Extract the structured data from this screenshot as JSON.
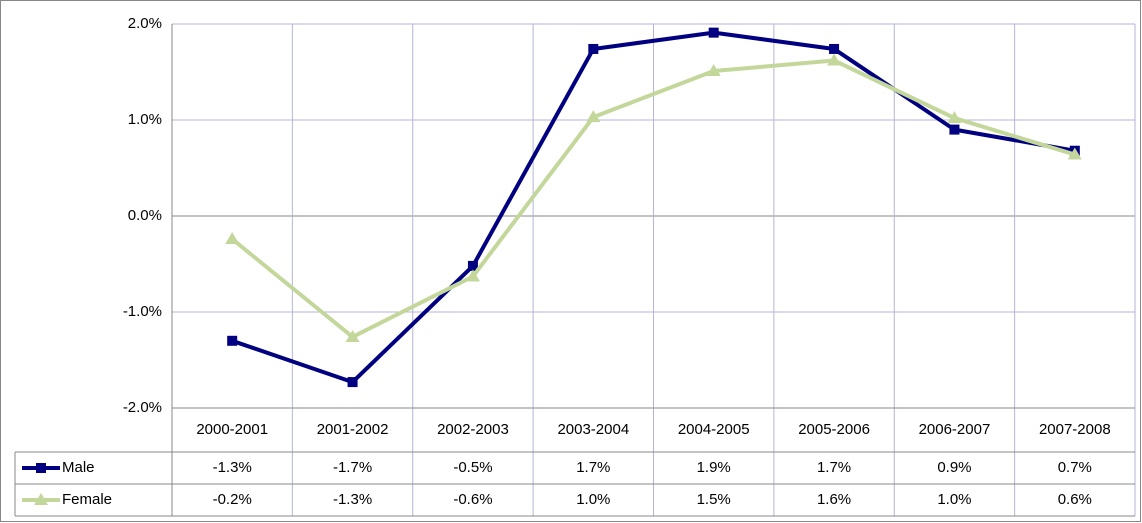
{
  "chart_data": {
    "type": "line",
    "categories": [
      "2000-2001",
      "2001-2002",
      "2002-2003",
      "2003-2004",
      "2004-2005",
      "2005-2006",
      "2006-2007",
      "2007-2008"
    ],
    "series": [
      {
        "name": "Male",
        "color": "#000080",
        "marker": "square",
        "values": [
          -1.3,
          -1.73,
          -0.52,
          1.74,
          1.91,
          1.74,
          0.9,
          0.68
        ],
        "value_labels": [
          "-1.3%",
          "-1.7%",
          "-0.5%",
          "1.7%",
          "1.9%",
          "1.7%",
          "0.9%",
          "0.7%"
        ]
      },
      {
        "name": "Female",
        "color": "#c4d79b",
        "marker": "triangle",
        "values": [
          -0.24,
          -1.26,
          -0.63,
          1.03,
          1.51,
          1.62,
          1.02,
          0.64
        ],
        "value_labels": [
          "-0.2%",
          "-1.3%",
          "-0.6%",
          "1.0%",
          "1.5%",
          "1.6%",
          "1.0%",
          "0.6%"
        ]
      }
    ],
    "ylim": [
      -2,
      2
    ],
    "yticks": [
      {
        "value": -2,
        "label": "-2.0%"
      },
      {
        "value": -1,
        "label": "-1.0%"
      },
      {
        "value": 0,
        "label": "0.0%"
      },
      {
        "value": 1,
        "label": "1.0%"
      },
      {
        "value": 2,
        "label": "2.0%"
      }
    ],
    "grid": true,
    "data_table": true
  }
}
